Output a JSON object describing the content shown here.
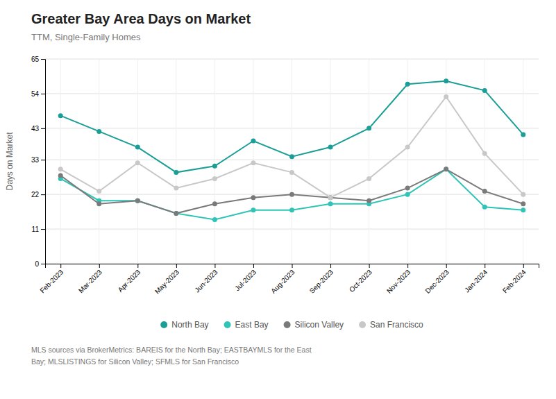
{
  "chart_data": {
    "type": "line",
    "title": "Greater Bay Area Days on Market",
    "subtitle": "TTM, Single-Family Homes",
    "ylabel": "Days on Market",
    "categories": [
      "Feb-2023",
      "Mar-2023",
      "Apr-2023",
      "May-2023",
      "Jun-2023",
      "Jul-2023",
      "Aug-2023",
      "Sep-2023",
      "Oct-2023",
      "Nov-2023",
      "Dec-2023",
      "Jan-2024",
      "Feb-2024"
    ],
    "series": [
      {
        "name": "North Bay",
        "color": "#1a9e96",
        "values": [
          47,
          42,
          37,
          29,
          31,
          39,
          34,
          37,
          43,
          57,
          58,
          55,
          41
        ]
      },
      {
        "name": "East Bay",
        "color": "#2ec4b6",
        "values": [
          27,
          20,
          20,
          16,
          14,
          17,
          17,
          19,
          19,
          22,
          30,
          18,
          17
        ]
      },
      {
        "name": "Silicon Valley",
        "color": "#7a7a7a",
        "values": [
          28,
          19,
          20,
          16,
          19,
          21,
          22,
          21,
          20,
          24,
          30,
          23,
          19
        ]
      },
      {
        "name": "San Francisco",
        "color": "#c8c8c8",
        "values": [
          30,
          23,
          32,
          24,
          27,
          32,
          29,
          21,
          27,
          37,
          53,
          35,
          22
        ]
      }
    ],
    "ylim": [
      0,
      65
    ],
    "yticks": [
      0,
      11,
      22,
      33,
      43,
      54,
      65
    ],
    "grid": true,
    "legend": "bottom",
    "marker": "circle",
    "footnote": [
      "MLS sources via BrokerMetrics: BAREIS for the North Bay; EASTBAYMLS for the East",
      "Bay; MLSLISTINGS for Silicon Valley; SFMLS for San Francisco"
    ]
  }
}
